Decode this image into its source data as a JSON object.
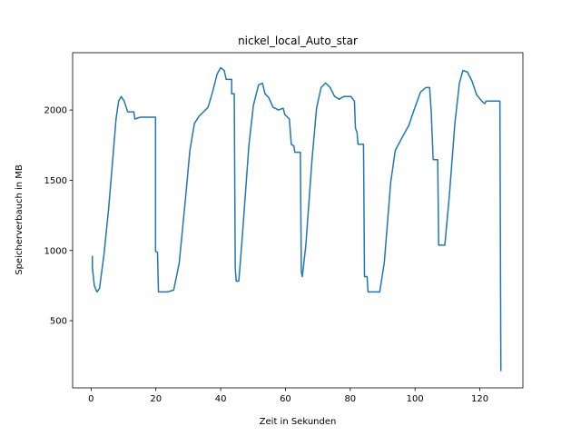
{
  "chart_data": {
    "type": "line",
    "title": "nickel_local_Auto_star",
    "xlabel": "Zeit in Sekunden",
    "ylabel": "Speicherverbauch in MB",
    "x": [
      0.4,
      0.4,
      1.0,
      1.8,
      2.6,
      4.0,
      5.4,
      6.8,
      7.7,
      8.5,
      9.3,
      10.2,
      11.3,
      13.2,
      13.5,
      15.2,
      19.9,
      19.9,
      20.5,
      20.8,
      23.6,
      25.5,
      27.2,
      29.1,
      30.5,
      31.9,
      33.3,
      34.7,
      36.1,
      37.5,
      38.9,
      40.0,
      41.1,
      41.7,
      43.4,
      43.4,
      44.2,
      44.5,
      44.8,
      45.6,
      46.7,
      48.7,
      50.1,
      51.7,
      52.9,
      53.7,
      54.8,
      56.2,
      57.9,
      59.3,
      59.8,
      61.2,
      61.8,
      62.6,
      62.9,
      64.6,
      64.9,
      65.2,
      66.3,
      68.2,
      69.6,
      71.0,
      72.4,
      73.8,
      75.2,
      76.6,
      78.0,
      80.2,
      81.3,
      81.6,
      82.1,
      82.4,
      84.1,
      84.4,
      85.2,
      85.5,
      89.1,
      90.5,
      92.5,
      93.9,
      96.1,
      98.1,
      99.7,
      101.7,
      103.4,
      104.5,
      105.0,
      105.6,
      107.0,
      107.3,
      109.2,
      110.6,
      112.3,
      113.7,
      114.8,
      116.2,
      117.6,
      119.0,
      120.6,
      121.5,
      122.0,
      126.2,
      126.5
    ],
    "values": [
      962,
      878,
      750,
      705,
      730,
      975,
      1295,
      1680,
      1936,
      2064,
      2096,
      2064,
      1987,
      1987,
      1936,
      1949,
      1949,
      994,
      987,
      705,
      705,
      718,
      910,
      1359,
      1712,
      1904,
      1955,
      1987,
      2019,
      2128,
      2256,
      2301,
      2282,
      2218,
      2218,
      2115,
      2115,
      878,
      782,
      782,
      1103,
      1744,
      2032,
      2179,
      2190,
      2115,
      2090,
      2019,
      2000,
      2013,
      1968,
      1936,
      1756,
      1744,
      1699,
      1699,
      846,
      814,
      1038,
      1647,
      2013,
      2160,
      2192,
      2160,
      2096,
      2077,
      2096,
      2096,
      2064,
      1872,
      1840,
      1756,
      1756,
      814,
      814,
      705,
      705,
      910,
      1487,
      1712,
      1808,
      1891,
      2000,
      2128,
      2160,
      2160,
      1987,
      1647,
      1647,
      1038,
      1038,
      1391,
      1904,
      2192,
      2282,
      2269,
      2205,
      2109,
      2064,
      2045,
      2064,
      2064,
      141
    ],
    "color": "#1f77b4",
    "xlim": [
      -5.7,
      133.3
    ],
    "xticks": [
      0,
      20,
      40,
      60,
      80,
      100,
      120
    ],
    "ylim": [
      22,
      2408
    ],
    "yticks": [
      500,
      1000,
      1500,
      2000
    ]
  }
}
